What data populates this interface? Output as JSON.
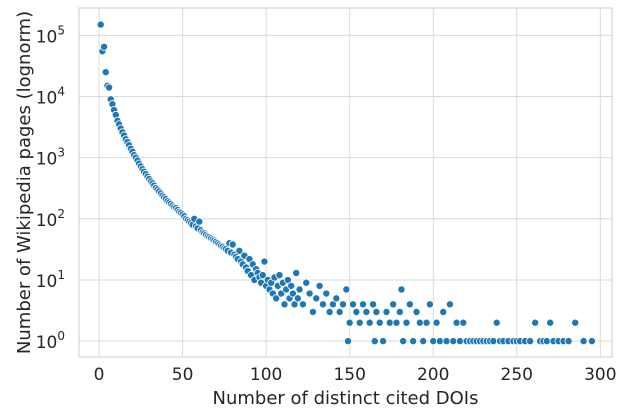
{
  "chart_data": {
    "type": "scatter",
    "title": "",
    "xlabel": "Number of distinct cited DOIs",
    "ylabel": "Number of Wikipedia pages (lognorm)",
    "xlim": [
      -12,
      307
    ],
    "ylim": [
      0.55,
      280000
    ],
    "yscale": "log",
    "grid": true,
    "x_ticks": [
      0,
      50,
      100,
      150,
      200,
      250,
      300
    ],
    "x_tick_labels": [
      "0",
      "50",
      "100",
      "150",
      "200",
      "250",
      "300"
    ],
    "y_ticks": [
      1,
      10,
      100,
      1000,
      10000,
      100000
    ],
    "y_tick_labels": [
      {
        "base": "10",
        "exp": "0"
      },
      {
        "base": "10",
        "exp": "1"
      },
      {
        "base": "10",
        "exp": "2"
      },
      {
        "base": "10",
        "exp": "3"
      },
      {
        "base": "10",
        "exp": "4"
      },
      {
        "base": "10",
        "exp": "5"
      }
    ],
    "marker_color": "#1f77b4",
    "series": [
      {
        "points": [
          [
            1,
            150000
          ],
          [
            2,
            55000
          ],
          [
            3,
            65000
          ],
          [
            4,
            25000
          ],
          [
            5,
            15000
          ],
          [
            6,
            14000
          ],
          [
            7,
            9000
          ],
          [
            8,
            7500
          ],
          [
            9,
            6000
          ],
          [
            10,
            5000
          ],
          [
            11,
            4000
          ],
          [
            12,
            3500
          ],
          [
            13,
            3000
          ],
          [
            14,
            2600
          ],
          [
            15,
            2300
          ],
          [
            16,
            2000
          ],
          [
            17,
            1800
          ],
          [
            18,
            1600
          ],
          [
            19,
            1400
          ],
          [
            20,
            1250
          ],
          [
            21,
            1100
          ],
          [
            22,
            1000
          ],
          [
            23,
            900
          ],
          [
            24,
            800
          ],
          [
            25,
            720
          ],
          [
            26,
            650
          ],
          [
            27,
            590
          ],
          [
            28,
            540
          ],
          [
            29,
            490
          ],
          [
            30,
            450
          ],
          [
            31,
            410
          ],
          [
            32,
            380
          ],
          [
            33,
            350
          ],
          [
            34,
            320
          ],
          [
            35,
            300
          ],
          [
            36,
            280
          ],
          [
            37,
            260
          ],
          [
            38,
            240
          ],
          [
            39,
            225
          ],
          [
            40,
            210
          ],
          [
            41,
            195
          ],
          [
            42,
            185
          ],
          [
            43,
            175
          ],
          [
            44,
            165
          ],
          [
            45,
            155
          ],
          [
            46,
            150
          ],
          [
            47,
            140
          ],
          [
            48,
            130
          ],
          [
            49,
            125
          ],
          [
            50,
            118
          ],
          [
            51,
            110
          ],
          [
            52,
            100
          ],
          [
            53,
            95
          ],
          [
            54,
            90
          ],
          [
            55,
            85
          ],
          [
            56,
            80
          ],
          [
            57,
            100
          ],
          [
            58,
            75
          ],
          [
            59,
            70
          ],
          [
            60,
            90
          ],
          [
            61,
            65
          ],
          [
            62,
            60
          ],
          [
            63,
            58
          ],
          [
            64,
            55
          ],
          [
            65,
            52
          ],
          [
            66,
            50
          ],
          [
            67,
            48
          ],
          [
            68,
            46
          ],
          [
            69,
            44
          ],
          [
            70,
            42
          ],
          [
            71,
            40
          ],
          [
            72,
            38
          ],
          [
            73,
            36
          ],
          [
            74,
            35
          ],
          [
            75,
            33
          ],
          [
            76,
            32
          ],
          [
            77,
            30
          ],
          [
            78,
            40
          ],
          [
            79,
            28
          ],
          [
            80,
            38
          ],
          [
            81,
            26
          ],
          [
            82,
            24
          ],
          [
            83,
            22
          ],
          [
            84,
            30
          ],
          [
            85,
            20
          ],
          [
            86,
            18
          ],
          [
            87,
            25
          ],
          [
            88,
            16
          ],
          [
            89,
            14
          ],
          [
            90,
            22
          ],
          [
            91,
            12
          ],
          [
            92,
            18
          ],
          [
            93,
            10
          ],
          [
            94,
            15
          ],
          [
            95,
            13
          ],
          [
            96,
            11
          ],
          [
            97,
            9
          ],
          [
            98,
            12
          ],
          [
            99,
            20
          ],
          [
            100,
            8
          ],
          [
            101,
            10
          ],
          [
            102,
            7
          ],
          [
            103,
            9
          ],
          [
            104,
            6
          ],
          [
            105,
            11
          ],
          [
            106,
            5
          ],
          [
            107,
            8
          ],
          [
            108,
            12
          ],
          [
            109,
            6
          ],
          [
            110,
            9
          ],
          [
            111,
            4
          ],
          [
            112,
            7
          ],
          [
            113,
            10
          ],
          [
            114,
            5
          ],
          [
            115,
            8
          ],
          [
            116,
            6
          ],
          [
            117,
            4
          ],
          [
            118,
            13
          ],
          [
            119,
            5
          ],
          [
            120,
            7
          ],
          [
            122,
            4
          ],
          [
            124,
            9
          ],
          [
            126,
            6
          ],
          [
            128,
            3
          ],
          [
            130,
            5
          ],
          [
            132,
            8
          ],
          [
            134,
            4
          ],
          [
            136,
            6
          ],
          [
            138,
            3
          ],
          [
            140,
            4
          ],
          [
            142,
            5
          ],
          [
            144,
            3
          ],
          [
            146,
            4
          ],
          [
            148,
            7
          ],
          [
            149,
            1
          ],
          [
            150,
            2
          ],
          [
            152,
            4
          ],
          [
            154,
            3
          ],
          [
            156,
            2
          ],
          [
            158,
            4
          ],
          [
            160,
            3
          ],
          [
            162,
            2
          ],
          [
            164,
            4
          ],
          [
            165,
            1
          ],
          [
            166,
            3
          ],
          [
            168,
            2
          ],
          [
            170,
            1
          ],
          [
            172,
            3
          ],
          [
            174,
            2
          ],
          [
            176,
            4
          ],
          [
            178,
            2
          ],
          [
            180,
            3
          ],
          [
            181,
            7
          ],
          [
            182,
            1
          ],
          [
            184,
            2
          ],
          [
            186,
            4
          ],
          [
            188,
            1
          ],
          [
            190,
            3
          ],
          [
            192,
            2
          ],
          [
            194,
            1
          ],
          [
            196,
            2
          ],
          [
            198,
            4
          ],
          [
            200,
            1
          ],
          [
            202,
            2
          ],
          [
            204,
            1
          ],
          [
            206,
            3
          ],
          [
            208,
            1
          ],
          [
            210,
            4
          ],
          [
            212,
            1
          ],
          [
            214,
            2
          ],
          [
            216,
            1
          ],
          [
            218,
            2
          ],
          [
            220,
            1
          ],
          [
            222,
            1
          ],
          [
            224,
            1
          ],
          [
            226,
            1
          ],
          [
            228,
            1
          ],
          [
            230,
            1
          ],
          [
            232,
            1
          ],
          [
            234,
            1
          ],
          [
            236,
            1
          ],
          [
            238,
            2
          ],
          [
            240,
            1
          ],
          [
            242,
            1
          ],
          [
            245,
            1
          ],
          [
            248,
            1
          ],
          [
            250,
            1
          ],
          [
            252,
            1
          ],
          [
            255,
            1
          ],
          [
            258,
            1
          ],
          [
            261,
            2
          ],
          [
            264,
            1
          ],
          [
            266,
            1
          ],
          [
            268,
            1
          ],
          [
            270,
            2
          ],
          [
            272,
            1
          ],
          [
            275,
            1
          ],
          [
            278,
            1
          ],
          [
            281,
            1
          ],
          [
            285,
            2
          ],
          [
            290,
            1
          ],
          [
            295,
            1
          ]
        ]
      }
    ]
  }
}
